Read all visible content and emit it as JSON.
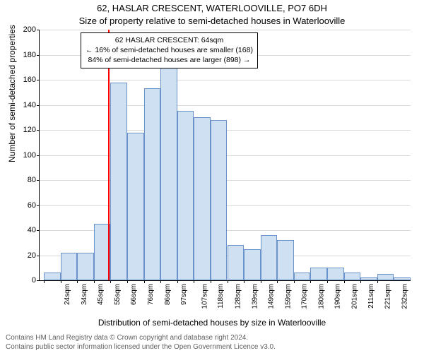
{
  "title_line1": "62, HASLAR CRESCENT, WATERLOOVILLE, PO7 6DH",
  "title_line2": "Size of property relative to semi-detached houses in Waterlooville",
  "ylabel": "Number of semi-detached properties",
  "xlabel": "Distribution of semi-detached houses by size in Waterlooville",
  "footer_line1": "Contains HM Land Registry data © Crown copyright and database right 2024.",
  "footer_line2": "Contains public sector information licensed under the Open Government Licence v3.0.",
  "chart": {
    "type": "bar-histogram",
    "background_color": "#ffffff",
    "grid_color": "#d9d9d9",
    "axis_color": "#000000",
    "bar_fill": "#cfe0f3",
    "bar_stroke": "#6b93c9",
    "bar_stroke_width": 1,
    "marker_color": "#ff0000",
    "marker_x_value": 64,
    "label_fontsize": 12,
    "tick_fontsize": 11,
    "title_fontsize": 13,
    "ylim": [
      0,
      200
    ],
    "ytick_step": 20,
    "x_start": 24,
    "x_bin_width": 10.4,
    "x_labels": [
      "24sqm",
      "34sqm",
      "45sqm",
      "55sqm",
      "66sqm",
      "76sqm",
      "86sqm",
      "97sqm",
      "107sqm",
      "118sqm",
      "128sqm",
      "139sqm",
      "149sqm",
      "159sqm",
      "170sqm",
      "180sqm",
      "190sqm",
      "201sqm",
      "211sqm",
      "221sqm",
      "232sqm"
    ],
    "values": [
      6,
      22,
      22,
      45,
      158,
      118,
      153,
      170,
      135,
      130,
      128,
      28,
      25,
      36,
      32,
      6,
      10,
      10,
      6,
      2,
      5,
      2
    ],
    "annotation": {
      "line1": "62 HASLAR CRESCENT: 64sqm",
      "line2": "← 16% of semi-detached houses are smaller (168)",
      "line3": "84% of semi-detached houses are larger (898) →"
    }
  }
}
